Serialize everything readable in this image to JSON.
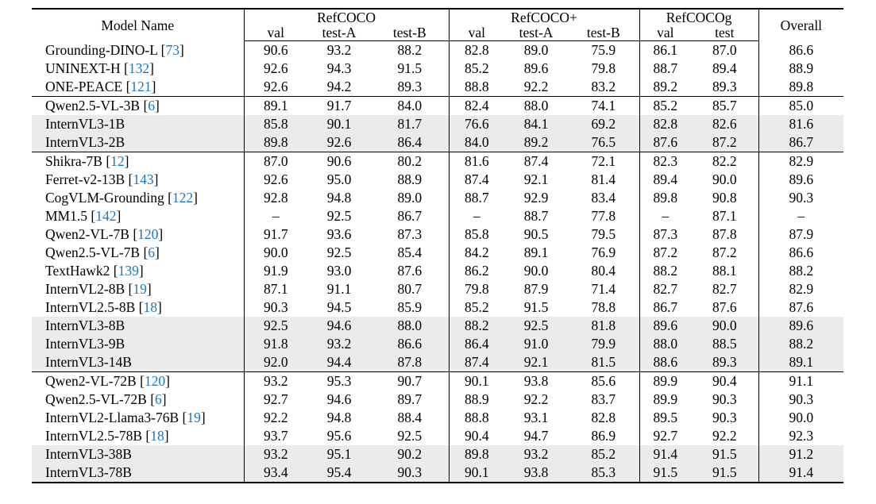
{
  "colors": {
    "citation_link": "#1779c4",
    "row_highlight": "#ebebeb",
    "rule": "#000000",
    "background": "#ffffff"
  },
  "table": {
    "header": {
      "model_label": "Model Name",
      "overall_label": "Overall",
      "groups": [
        {
          "label": "RefCOCO",
          "subcols": [
            "val",
            "test-A",
            "test-B"
          ]
        },
        {
          "label": "RefCOCO+",
          "subcols": [
            "val",
            "test-A",
            "test-B"
          ]
        },
        {
          "label": "RefCOCOg",
          "subcols": [
            "val",
            "test"
          ]
        }
      ]
    },
    "groups": [
      {
        "rows": [
          {
            "model": "Grounding-DINO-L",
            "cite": "73",
            "highlight": false,
            "values": [
              "90.6",
              "93.2",
              "88.2",
              "82.8",
              "89.0",
              "75.9",
              "86.1",
              "87.0",
              "86.6"
            ]
          },
          {
            "model": "UNINEXT-H",
            "cite": "132",
            "highlight": false,
            "values": [
              "92.6",
              "94.3",
              "91.5",
              "85.2",
              "89.6",
              "79.8",
              "88.7",
              "89.4",
              "88.9"
            ]
          },
          {
            "model": "ONE-PEACE",
            "cite": "121",
            "highlight": false,
            "values": [
              "92.6",
              "94.2",
              "89.3",
              "88.8",
              "92.2",
              "83.2",
              "89.2",
              "89.3",
              "89.8"
            ]
          }
        ]
      },
      {
        "rows": [
          {
            "model": "Qwen2.5-VL-3B",
            "cite": "6",
            "highlight": false,
            "values": [
              "89.1",
              "91.7",
              "84.0",
              "82.4",
              "88.0",
              "74.1",
              "85.2",
              "85.7",
              "85.0"
            ]
          },
          {
            "model": "InternVL3-1B",
            "cite": "",
            "highlight": true,
            "values": [
              "85.8",
              "90.1",
              "81.7",
              "76.6",
              "84.1",
              "69.2",
              "82.8",
              "82.6",
              "81.6"
            ]
          },
          {
            "model": "InternVL3-2B",
            "cite": "",
            "highlight": true,
            "values": [
              "89.8",
              "92.6",
              "86.4",
              "84.0",
              "89.2",
              "76.5",
              "87.6",
              "87.2",
              "86.7"
            ]
          }
        ]
      },
      {
        "rows": [
          {
            "model": "Shikra-7B",
            "cite": "12",
            "highlight": false,
            "values": [
              "87.0",
              "90.6",
              "80.2",
              "81.6",
              "87.4",
              "72.1",
              "82.3",
              "82.2",
              "82.9"
            ]
          },
          {
            "model": "Ferret-v2-13B",
            "cite": "143",
            "highlight": false,
            "values": [
              "92.6",
              "95.0",
              "88.9",
              "87.4",
              "92.1",
              "81.4",
              "89.4",
              "90.0",
              "89.6"
            ]
          },
          {
            "model": "CogVLM-Grounding",
            "cite": "122",
            "highlight": false,
            "values": [
              "92.8",
              "94.8",
              "89.0",
              "88.7",
              "92.9",
              "83.4",
              "89.8",
              "90.8",
              "90.3"
            ]
          },
          {
            "model": "MM1.5",
            "cite": "142",
            "highlight": false,
            "values": [
              "–",
              "92.5",
              "86.7",
              "–",
              "88.7",
              "77.8",
              "–",
              "87.1",
              "–"
            ]
          },
          {
            "model": "Qwen2-VL-7B",
            "cite": "120",
            "highlight": false,
            "values": [
              "91.7",
              "93.6",
              "87.3",
              "85.8",
              "90.5",
              "79.5",
              "87.3",
              "87.8",
              "87.9"
            ]
          },
          {
            "model": "Qwen2.5-VL-7B",
            "cite": "6",
            "highlight": false,
            "values": [
              "90.0",
              "92.5",
              "85.4",
              "84.2",
              "89.1",
              "76.9",
              "87.2",
              "87.2",
              "86.6"
            ]
          },
          {
            "model": "TextHawk2",
            "cite": "139",
            "highlight": false,
            "values": [
              "91.9",
              "93.0",
              "87.6",
              "86.2",
              "90.0",
              "80.4",
              "88.2",
              "88.1",
              "88.2"
            ]
          },
          {
            "model": "InternVL2-8B",
            "cite": "19",
            "highlight": false,
            "values": [
              "87.1",
              "91.1",
              "80.7",
              "79.8",
              "87.9",
              "71.4",
              "82.7",
              "82.7",
              "82.9"
            ]
          },
          {
            "model": "InternVL2.5-8B",
            "cite": "18",
            "highlight": false,
            "values": [
              "90.3",
              "94.5",
              "85.9",
              "85.2",
              "91.5",
              "78.8",
              "86.7",
              "87.6",
              "87.6"
            ]
          },
          {
            "model": "InternVL3-8B",
            "cite": "",
            "highlight": true,
            "values": [
              "92.5",
              "94.6",
              "88.0",
              "88.2",
              "92.5",
              "81.8",
              "89.6",
              "90.0",
              "89.6"
            ]
          },
          {
            "model": "InternVL3-9B",
            "cite": "",
            "highlight": true,
            "values": [
              "91.8",
              "93.2",
              "86.6",
              "86.4",
              "91.0",
              "79.9",
              "88.0",
              "88.5",
              "88.2"
            ]
          },
          {
            "model": "InternVL3-14B",
            "cite": "",
            "highlight": true,
            "values": [
              "92.0",
              "94.4",
              "87.8",
              "87.4",
              "92.1",
              "81.5",
              "88.6",
              "89.3",
              "89.1"
            ]
          }
        ]
      },
      {
        "rows": [
          {
            "model": "Qwen2-VL-72B",
            "cite": "120",
            "highlight": false,
            "values": [
              "93.2",
              "95.3",
              "90.7",
              "90.1",
              "93.8",
              "85.6",
              "89.9",
              "90.4",
              "91.1"
            ]
          },
          {
            "model": "Qwen2.5-VL-72B",
            "cite": "6",
            "highlight": false,
            "values": [
              "92.7",
              "94.6",
              "89.7",
              "88.9",
              "92.2",
              "83.7",
              "89.9",
              "90.3",
              "90.3"
            ]
          },
          {
            "model": "InternVL2-Llama3-76B",
            "cite": "19",
            "highlight": false,
            "values": [
              "92.2",
              "94.8",
              "88.4",
              "88.8",
              "93.1",
              "82.8",
              "89.5",
              "90.3",
              "90.0"
            ]
          },
          {
            "model": "InternVL2.5-78B",
            "cite": "18",
            "highlight": false,
            "values": [
              "93.7",
              "95.6",
              "92.5",
              "90.4",
              "94.7",
              "86.9",
              "92.7",
              "92.2",
              "92.3"
            ]
          },
          {
            "model": "InternVL3-38B",
            "cite": "",
            "highlight": true,
            "values": [
              "93.2",
              "95.1",
              "90.2",
              "89.8",
              "93.2",
              "85.2",
              "91.4",
              "91.5",
              "91.2"
            ]
          },
          {
            "model": "InternVL3-78B",
            "cite": "",
            "highlight": true,
            "values": [
              "93.4",
              "95.4",
              "90.3",
              "90.1",
              "93.8",
              "85.3",
              "91.5",
              "91.5",
              "91.4"
            ]
          }
        ]
      }
    ]
  }
}
